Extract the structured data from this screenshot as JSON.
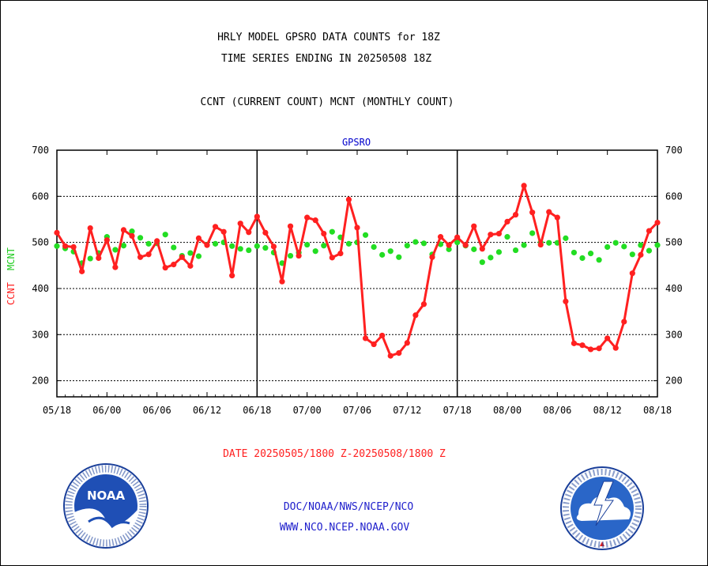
{
  "header": {
    "title_line1": "HRLY MODEL GPSRO DATA COUNTS for 18Z",
    "title_line2": "TIME SERIES ENDING IN 20250508 18Z",
    "subtitle": "CCNT (CURRENT COUNT) MCNT (MONTHLY COUNT)"
  },
  "footer": {
    "date_range": "DATE 20250505/1800 Z-20250508/1800 Z",
    "credit": "DOC/NOAA/NWS/NCEP/NCO",
    "url": "WWW.NCO.NCEP.NOAA.GOV"
  },
  "logos": {
    "left": {
      "label": "NOAA",
      "ring_text": "NATIONAL OCEANIC AND ATMOSPHERIC ADMINISTRATION · U.S. DEPARTMENT OF COMMERCE"
    },
    "right": {
      "ring_text": "NATIONAL WEATHER SERVICE"
    }
  },
  "colors": {
    "ccnt": "#ff2020",
    "mcnt": "#22dd22",
    "label_blue": "#0000cc",
    "grid": "#000000"
  },
  "chart_data": {
    "type": "line",
    "title": "GPSRO",
    "ylabel_series": [
      "CCNT",
      "MCNT"
    ],
    "ylim": [
      165,
      700
    ],
    "yticks": [
      200,
      300,
      400,
      500,
      600,
      700
    ],
    "xlim": [
      0,
      72
    ],
    "xtick_labels": [
      "05/18",
      "06/00",
      "06/06",
      "06/12",
      "06/18",
      "07/00",
      "07/06",
      "07/12",
      "07/18",
      "08/00",
      "08/06",
      "08/12",
      "08/18"
    ],
    "major_x_dividers": [
      24,
      48
    ],
    "grid": "horizontal-dotted",
    "x": [
      0,
      1,
      2,
      3,
      4,
      5,
      6,
      7,
      8,
      9,
      10,
      11,
      12,
      13,
      14,
      15,
      16,
      17,
      18,
      19,
      20,
      21,
      22,
      23,
      24,
      25,
      26,
      27,
      28,
      29,
      30,
      31,
      32,
      33,
      34,
      35,
      36,
      37,
      38,
      39,
      40,
      41,
      42,
      43,
      44,
      45,
      46,
      47,
      48,
      49,
      50,
      51,
      52,
      53,
      54,
      55,
      56,
      57,
      58,
      59,
      60,
      61,
      62,
      63,
      64,
      65,
      66,
      67,
      68,
      69,
      70,
      71,
      72
    ],
    "series": [
      {
        "name": "CCNT",
        "color": "#ff2020",
        "values": [
          521,
          492,
          490,
          437,
          531,
          466,
          505,
          446,
          527,
          514,
          468,
          474,
          503,
          445,
          452,
          468,
          449,
          509,
          494,
          534,
          523,
          428,
          541,
          522,
          556,
          521,
          491,
          415,
          535,
          471,
          554,
          548,
          519,
          467,
          476,
          593,
          532,
          292,
          279,
          298,
          254,
          260,
          282,
          342,
          366,
          468,
          512,
          494,
          511,
          494,
          535,
          486,
          517,
          519,
          545,
          560,
          623,
          565,
          495,
          566,
          554,
          372,
          281,
          277,
          268,
          270,
          292,
          271,
          328,
          433,
          473,
          525,
          543
        ]
      },
      {
        "name": "MCNT",
        "color": "#22dd22",
        "values": [
          492,
          487,
          480,
          455,
          465,
          477,
          512,
          484,
          493,
          524,
          510,
          497,
          498,
          517,
          489,
          471,
          477,
          470,
          495,
          497,
          500,
          492,
          486,
          483,
          492,
          488,
          478,
          455,
          471,
          478,
          495,
          481,
          493,
          523,
          511,
          497,
          500,
          516,
          490,
          473,
          481,
          468,
          493,
          501,
          498,
          474,
          496,
          485,
          500,
          493,
          485,
          457,
          467,
          479,
          512,
          483,
          494,
          520,
          500,
          499,
          499,
          509,
          478,
          466,
          476,
          462,
          490,
          499,
          491,
          474,
          494,
          482,
          494
        ]
      }
    ]
  }
}
